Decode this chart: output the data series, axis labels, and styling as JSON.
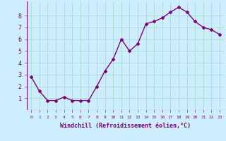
{
  "x": [
    0,
    1,
    2,
    3,
    4,
    5,
    6,
    7,
    8,
    9,
    10,
    11,
    12,
    13,
    14,
    15,
    16,
    17,
    18,
    19,
    20,
    21,
    22,
    23
  ],
  "y": [
    2.8,
    1.6,
    0.8,
    0.8,
    1.1,
    0.8,
    0.8,
    0.8,
    2.0,
    3.3,
    4.3,
    6.0,
    5.0,
    5.6,
    7.3,
    7.5,
    7.8,
    8.3,
    8.7,
    8.3,
    7.5,
    7.0,
    6.8,
    6.4
  ],
  "line_color": "#800080",
  "marker": "D",
  "markersize": 2,
  "linewidth": 1.0,
  "bg_color": "#cceeff",
  "grid_color": "#aaddcc",
  "xlabel": "Windchill (Refroidissement éolien,°C)",
  "xlabel_color": "#800080",
  "tick_color": "#800080",
  "xlim": [
    -0.5,
    23.5
  ],
  "ylim": [
    0,
    9.2
  ],
  "yticks": [
    1,
    2,
    3,
    4,
    5,
    6,
    7,
    8
  ],
  "xticks": [
    0,
    1,
    2,
    3,
    4,
    5,
    6,
    7,
    8,
    9,
    10,
    11,
    12,
    13,
    14,
    15,
    16,
    17,
    18,
    19,
    20,
    21,
    22,
    23
  ],
  "xtick_labels": [
    "0",
    "1",
    "2",
    "3",
    "4",
    "5",
    "6",
    "7",
    "8",
    "9",
    "10",
    "11",
    "12",
    "13",
    "14",
    "15",
    "16",
    "17",
    "18",
    "19",
    "20",
    "21",
    "22",
    "23"
  ]
}
